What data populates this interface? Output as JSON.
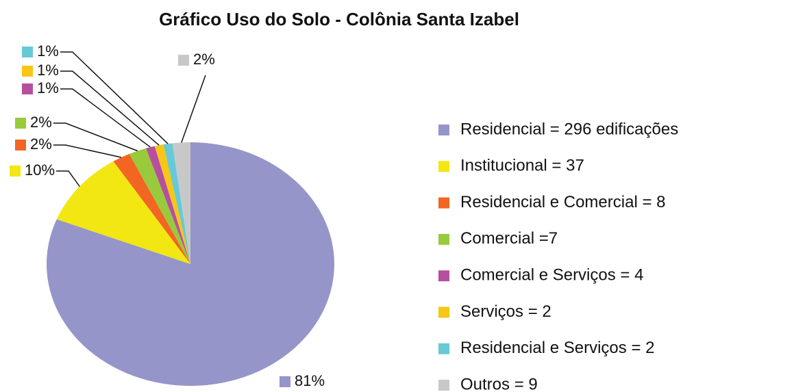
{
  "chart_data": {
    "type": "pie",
    "title": "Gráfico Uso do Solo - Colônia Santa Izabel",
    "categories": [
      "Residencial = 296 edificações",
      "Institucional =  37",
      "Residencial e Comercial = 8",
      "Comercial =7",
      "Comercial e Serviços =  4",
      "Serviços = 2",
      "Residencial e Serviços = 2",
      "Outros = 9"
    ],
    "values": [
      81,
      10,
      2,
      2,
      1,
      1,
      1,
      2
    ],
    "value_labels": [
      "81%",
      "10%",
      "2%",
      "2%",
      "1%",
      "1%",
      "1%",
      "2%"
    ],
    "colors": [
      "#9595c9",
      "#f2e713",
      "#f26522",
      "#99ca3c",
      "#b6509e",
      "#f7c616",
      "#68c9d6",
      "#c8c8c8"
    ],
    "legend": "right"
  }
}
